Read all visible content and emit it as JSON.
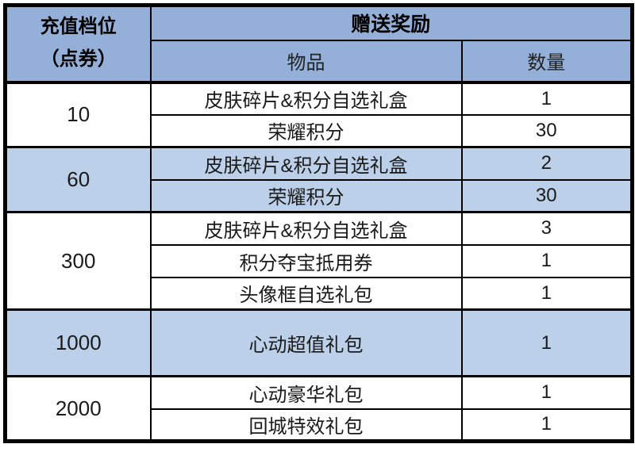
{
  "page": {
    "background": "#ffffff"
  },
  "table": {
    "colors": {
      "header_bg": "#94b0d8",
      "shaded_row_bg": "#bdd0e9",
      "border": "#000000",
      "text": "#1a1a1a"
    },
    "header": {
      "tier_line1": "充值档位",
      "tier_line2": "（点券）",
      "rewards_label": "赠送奖励",
      "item_label": "物品",
      "qty_label": "数量"
    },
    "groups": [
      {
        "tier": "10",
        "shaded": false,
        "tall": false,
        "items": [
          {
            "item": "皮肤碎片&积分自选礼盒",
            "qty": "1"
          },
          {
            "item": "荣耀积分",
            "qty": "30"
          }
        ]
      },
      {
        "tier": "60",
        "shaded": true,
        "tall": false,
        "items": [
          {
            "item": "皮肤碎片&积分自选礼盒",
            "qty": "2"
          },
          {
            "item": "荣耀积分",
            "qty": "30"
          }
        ]
      },
      {
        "tier": "300",
        "shaded": false,
        "tall": false,
        "items": [
          {
            "item": "皮肤碎片&积分自选礼盒",
            "qty": "3"
          },
          {
            "item": "积分夺宝抵用券",
            "qty": "1"
          },
          {
            "item": "头像框自选礼包",
            "qty": "1"
          }
        ]
      },
      {
        "tier": "1000",
        "shaded": true,
        "tall": true,
        "items": [
          {
            "item": "心动超值礼包",
            "qty": "1"
          }
        ]
      },
      {
        "tier": "2000",
        "shaded": false,
        "tall": false,
        "items": [
          {
            "item": "心动豪华礼包",
            "qty": "1"
          },
          {
            "item": "回城特效礼包",
            "qty": "1"
          }
        ]
      }
    ]
  }
}
